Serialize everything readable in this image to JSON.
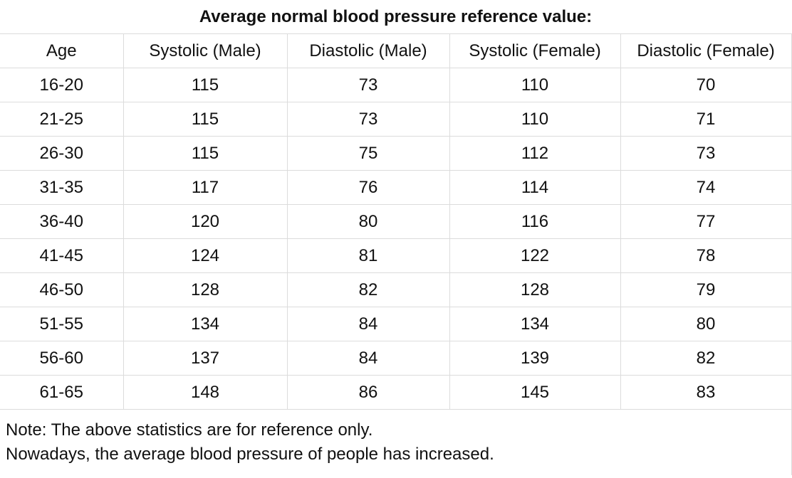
{
  "table": {
    "title": "Average normal blood pressure reference value:",
    "headers": [
      "Age",
      "Systolic (Male)",
      "Diastolic (Male)",
      "Systolic (Female)",
      "Diastolic (Female)"
    ],
    "rows": [
      [
        "16-20",
        "115",
        "73",
        "110",
        "70"
      ],
      [
        "21-25",
        "115",
        "73",
        "110",
        "71"
      ],
      [
        "26-30",
        "115",
        "75",
        "112",
        "73"
      ],
      [
        "31-35",
        "117",
        "76",
        "114",
        "74"
      ],
      [
        "36-40",
        "120",
        "80",
        "116",
        "77"
      ],
      [
        "41-45",
        "124",
        "81",
        "122",
        "78"
      ],
      [
        "46-50",
        "128",
        "82",
        "128",
        "79"
      ],
      [
        "51-55",
        "134",
        "84",
        "134",
        "80"
      ],
      [
        "56-60",
        "137",
        "84",
        "139",
        "82"
      ],
      [
        "61-65",
        "148",
        "86",
        "145",
        "83"
      ]
    ]
  },
  "notes": {
    "line1": "Note: The above statistics are for reference only.",
    "line2": "Nowadays, the average blood pressure of people has increased."
  }
}
